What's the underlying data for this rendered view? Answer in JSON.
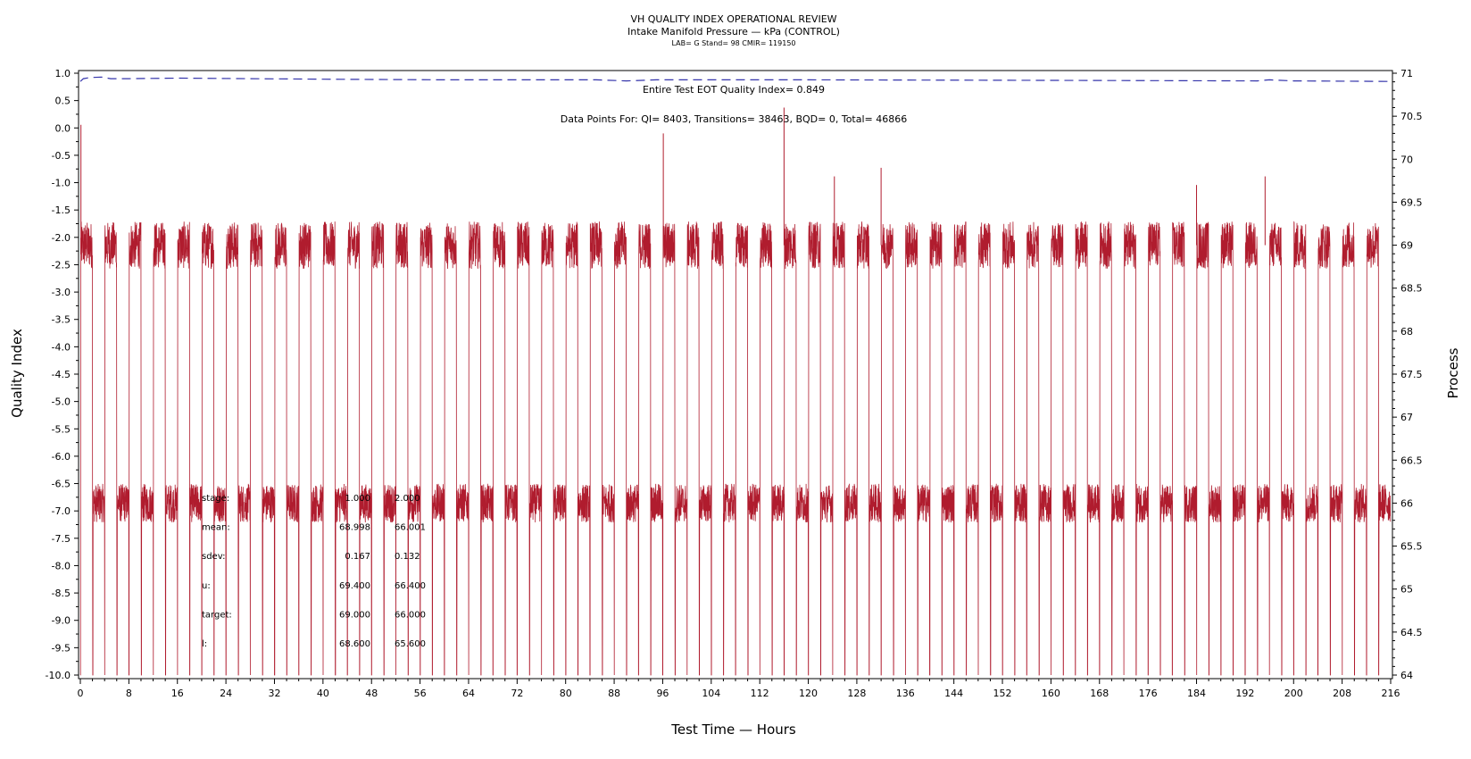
{
  "chart_data": {
    "type": "line",
    "title": "VH QUALITY INDEX OPERATIONAL REVIEW",
    "subtitle": "Intake Manifold Pressure — kPa (CONTROL)",
    "subtitle2": "LAB= G Stand= 98 CMIR= 119150",
    "xlabel": "Test Time — Hours",
    "ylabel_left": "Quality Index",
    "ylabel_right": "Process",
    "xlim": [
      0,
      216
    ],
    "ylim_left": [
      -10,
      1
    ],
    "ylim_right": [
      64,
      71
    ],
    "x_ticks": [
      "0",
      "8",
      "16",
      "24",
      "32",
      "40",
      "48",
      "56",
      "64",
      "72",
      "80",
      "88",
      "96",
      "104",
      "112",
      "120",
      "128",
      "136",
      "144",
      "152",
      "160",
      "168",
      "176",
      "184",
      "192",
      "200",
      "208",
      "216"
    ],
    "y_left_ticks": [
      "1.0",
      "0.5",
      "0.0",
      "-0.5",
      "-1.0",
      "-1.5",
      "-2.0",
      "-2.5",
      "-3.0",
      "-3.5",
      "-4.0",
      "-4.5",
      "-5.0",
      "-5.5",
      "-6.0",
      "-6.5",
      "-7.0",
      "-7.5",
      "-8.0",
      "-8.5",
      "-9.0",
      "-9.5",
      "-10.0"
    ],
    "y_right_ticks": [
      "71",
      "70.5",
      "70",
      "69.5",
      "69",
      "68.5",
      "68",
      "67.5",
      "67",
      "66.5",
      "66",
      "65.5",
      "65",
      "64.5",
      "64"
    ],
    "annotations": {
      "eot_qi": "Entire Test EOT Quality Index=   0.849",
      "data_points": "Data Points For: QI=  8403, Transitions= 38463, BQD=     0, Total= 46866"
    },
    "stats_table": {
      "rows": [
        {
          "label": "stage:",
          "v1": "1.000",
          "v2": "2.000"
        },
        {
          "label": "mean:",
          "v1": "68.998",
          "v2": "66.001"
        },
        {
          "label": "sdev:",
          "v1": "0.167",
          "v2": "0.132"
        },
        {
          "label": "u:",
          "v1": "69.400",
          "v2": "66.400"
        },
        {
          "label": "target:",
          "v1": "69.000",
          "v2": "66.000"
        },
        {
          "label": "l:",
          "v1": "68.600",
          "v2": "65.600"
        }
      ]
    },
    "series": [
      {
        "key": "quality_index",
        "axis": "left",
        "color": "#3333aa",
        "style": "dashed",
        "points": [
          [
            0,
            0.85
          ],
          [
            0.5,
            0.9
          ],
          [
            1.5,
            0.92
          ],
          [
            3.5,
            0.93
          ],
          [
            5,
            0.9
          ],
          [
            8,
            0.9
          ],
          [
            16,
            0.91
          ],
          [
            28,
            0.9
          ],
          [
            40,
            0.89
          ],
          [
            60,
            0.88
          ],
          [
            85,
            0.88
          ],
          [
            90,
            0.86
          ],
          [
            95,
            0.88
          ],
          [
            120,
            0.88
          ],
          [
            160,
            0.87
          ],
          [
            194,
            0.86
          ],
          [
            196,
            0.88
          ],
          [
            200,
            0.86
          ],
          [
            216,
            0.85
          ]
        ]
      },
      {
        "key": "process",
        "axis": "right",
        "color": "#b01c2e",
        "stage_levels": {
          "high": 69.0,
          "low": 66.0
        },
        "cycle_hours": 4,
        "spikes": [
          {
            "x": 0.1,
            "y": 70.4
          },
          {
            "x": 96.1,
            "y": 70.3
          },
          {
            "x": 116.0,
            "y": 70.6
          },
          {
            "x": 132.0,
            "y": 69.9
          },
          {
            "x": 124.3,
            "y": 69.8
          },
          {
            "x": 184.0,
            "y": 69.7
          },
          {
            "x": 195.3,
            "y": 69.8
          }
        ]
      }
    ]
  }
}
